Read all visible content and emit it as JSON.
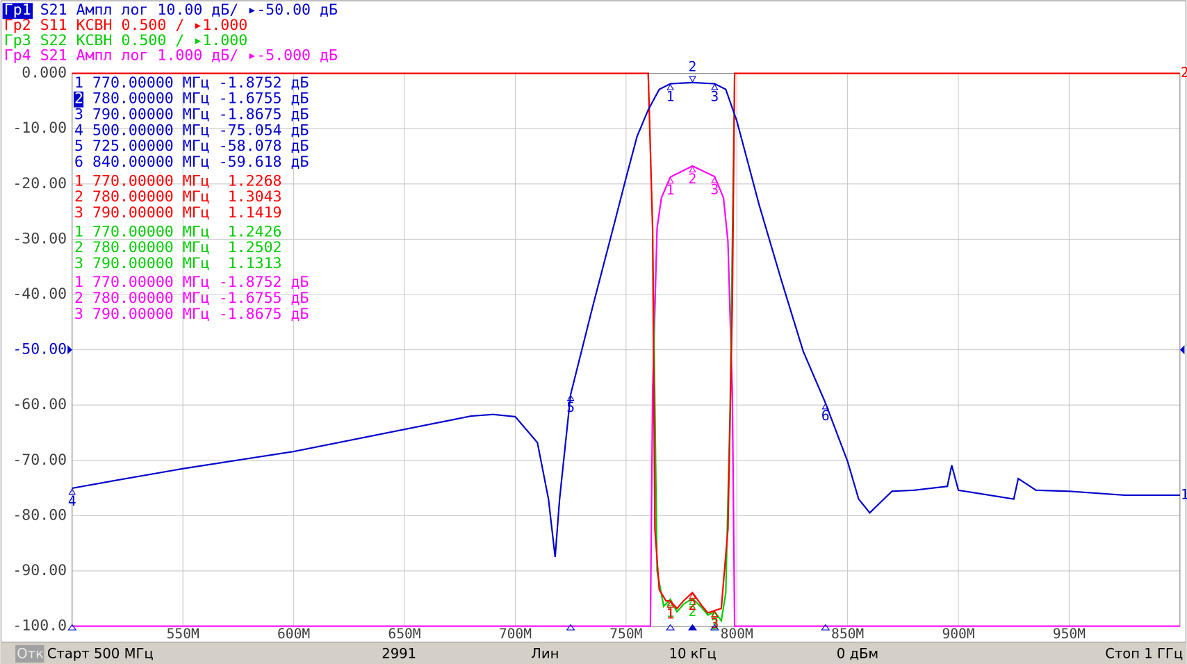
{
  "chart_data": {
    "type": "line",
    "xlim": [
      500,
      1000
    ],
    "xticks": [
      {
        "value": 550,
        "label": "550M"
      },
      {
        "value": 600,
        "label": "600M"
      },
      {
        "value": 650,
        "label": "650M"
      },
      {
        "value": 700,
        "label": "700M"
      },
      {
        "value": 750,
        "label": "750M"
      },
      {
        "value": 800,
        "label": "800M"
      },
      {
        "value": 850,
        "label": "850M"
      },
      {
        "value": 900,
        "label": "900M"
      },
      {
        "value": 950,
        "label": "950M"
      }
    ],
    "ylim": [
      -100,
      0
    ],
    "yticks": [
      {
        "value": 0,
        "label": "0.000"
      },
      {
        "value": -10,
        "label": "-10.00"
      },
      {
        "value": -20,
        "label": "-20.00"
      },
      {
        "value": -30,
        "label": "-30.00"
      },
      {
        "value": -40,
        "label": "-40.00"
      },
      {
        "value": -50,
        "label": "-50.00"
      },
      {
        "value": -60,
        "label": "-60.00"
      },
      {
        "value": -70,
        "label": "-70.00"
      },
      {
        "value": -80,
        "label": "-80.00"
      },
      {
        "value": -90,
        "label": "-90.00"
      },
      {
        "value": -100,
        "label": "-100.0"
      }
    ],
    "grid": true,
    "series": [
      {
        "trace": "Гр1",
        "name": "S21",
        "format": "Ампл лог",
        "scale": "10.00 дБ/",
        "ref": "▸-50.00 дБ",
        "color": "#0000cc",
        "tag": "1",
        "x": [
          500,
          520,
          550,
          600,
          650,
          680,
          690,
          700,
          710,
          715,
          718,
          720,
          725,
          735,
          745,
          750,
          755,
          760,
          765,
          770,
          780,
          790,
          795,
          800,
          805,
          810,
          820,
          830,
          840,
          850,
          855,
          860,
          870,
          880,
          895,
          897,
          900,
          925,
          927,
          935,
          950,
          975,
          1000
        ],
        "values": [
          -75.054,
          -73.6,
          -71.5,
          -68.4,
          -64.4,
          -62,
          -61.7,
          -62.1,
          -66.8,
          -77,
          -87.5,
          -77,
          -58.078,
          -42.1,
          -26.7,
          -18.9,
          -11.4,
          -6.6,
          -2.9,
          -1.8752,
          -1.6755,
          -1.8675,
          -2.9,
          -8.6,
          -16.1,
          -23.7,
          -37.3,
          -50.3,
          -59.618,
          -70.2,
          -77,
          -79.5,
          -75.6,
          -75.4,
          -74.7,
          -70.9,
          -75.4,
          -77,
          -73.3,
          -75.4,
          -75.6,
          -76.3,
          -76.3
        ],
        "markers": [
          {
            "n": "1",
            "freq": 770,
            "freq_label": "770.00000 МГц",
            "value": -1.8752,
            "value_label": "-1.8752 дБ"
          },
          {
            "n": "2",
            "freq": 780,
            "freq_label": "780.00000 МГц",
            "value": -1.6755,
            "value_label": "-1.6755 дБ"
          },
          {
            "n": "3",
            "freq": 790,
            "freq_label": "790.00000 МГц",
            "value": -1.8675,
            "value_label": "-1.8675 дБ"
          },
          {
            "n": "4",
            "freq": 500,
            "freq_label": "500.00000 МГц",
            "value": -75.054,
            "value_label": "-75.054 дБ"
          },
          {
            "n": "5",
            "freq": 725,
            "freq_label": "725.00000 МГц",
            "value": -58.078,
            "value_label": "-58.078 дБ"
          },
          {
            "n": "6",
            "freq": 840,
            "freq_label": "840.00000 МГц",
            "value": -59.618,
            "value_label": "-59.618 дБ"
          }
        ]
      },
      {
        "trace": "Гр2",
        "name": "S11",
        "format": "КСВН",
        "scale": "0.500 /",
        "ref": "▸1.000",
        "color": "#ff0000",
        "tag": "2",
        "ylim": [
          1,
          6
        ],
        "x": [
          500,
          760,
          762,
          763,
          765,
          768,
          770,
          773,
          776,
          780,
          784,
          787,
          790,
          793,
          796,
          798,
          799,
          1000
        ],
        "values": [
          6,
          6,
          4.6,
          1.88,
          1.33,
          1.23,
          1.2268,
          1.16,
          1.23,
          1.3043,
          1.19,
          1.12,
          1.1419,
          1.16,
          1.88,
          3.93,
          6,
          6
        ],
        "markers": [
          {
            "n": "1",
            "freq": 770,
            "freq_label": "770.00000 МГц",
            "value": 1.2268,
            "value_label": "1.2268"
          },
          {
            "n": "2",
            "freq": 780,
            "freq_label": "780.00000 МГц",
            "value": 1.3043,
            "value_label": "1.3043"
          },
          {
            "n": "3",
            "freq": 790,
            "freq_label": "790.00000 МГц",
            "value": 1.1419,
            "value_label": "1.1419"
          }
        ]
      },
      {
        "trace": "Гр3",
        "name": "S22",
        "format": "КСВН",
        "scale": "0.500 /",
        "ref": "▸1.000",
        "color": "#00cc00",
        "ylim": [
          1,
          6
        ],
        "x": [
          500,
          760,
          762,
          764,
          767,
          770,
          773,
          776,
          780,
          784,
          787,
          790,
          793,
          795,
          797,
          799,
          1000
        ],
        "values": [
          6,
          6,
          4.6,
          1.5,
          1.18,
          1.2426,
          1.13,
          1.2,
          1.2502,
          1.17,
          1.1,
          1.1313,
          1.05,
          1.3,
          3,
          6,
          6
        ],
        "markers": [
          {
            "n": "1",
            "freq": 770,
            "freq_label": "770.00000 МГц",
            "value": 1.2426,
            "value_label": "1.2426"
          },
          {
            "n": "2",
            "freq": 780,
            "freq_label": "780.00000 МГц",
            "value": 1.2502,
            "value_label": "1.2502"
          },
          {
            "n": "3",
            "freq": 790,
            "freq_label": "790.00000 МГц",
            "value": 1.1313,
            "value_label": "1.1313"
          }
        ]
      },
      {
        "trace": "Гр4",
        "name": "S21",
        "format": "Ампл лог",
        "scale": "1.000 дБ/",
        "ref": "▸-5.000 дБ",
        "color": "#ff00ff",
        "ylim": [
          -10,
          0
        ],
        "x": [
          500,
          761,
          762,
          764,
          766,
          770,
          780,
          790,
          794,
          796,
          798,
          799,
          1000
        ],
        "values": [
          -10,
          -10,
          -5.8,
          -2.8,
          -2.25,
          -1.8752,
          -1.6755,
          -1.8675,
          -2.25,
          -3.05,
          -5.8,
          -10,
          -10
        ],
        "markers": [
          {
            "n": "1",
            "freq": 770,
            "freq_label": "770.00000 МГц",
            "value": -1.8752,
            "value_label": "-1.8752 дБ"
          },
          {
            "n": "2",
            "freq": 780,
            "freq_label": "780.00000 МГц",
            "value": -1.6755,
            "value_label": "-1.6755 дБ"
          },
          {
            "n": "3",
            "freq": 790,
            "freq_label": "790.00000 МГц",
            "value": -1.8675,
            "value_label": "-1.8675 дБ"
          }
        ]
      }
    ]
  },
  "status": {
    "state": "Отк",
    "start": "Старт 500 МГц",
    "points": "2991",
    "sweep": "Лин",
    "ifbw": "10 кГц",
    "power": "0 дБм",
    "stop": "Стоп 1 ГГц"
  }
}
